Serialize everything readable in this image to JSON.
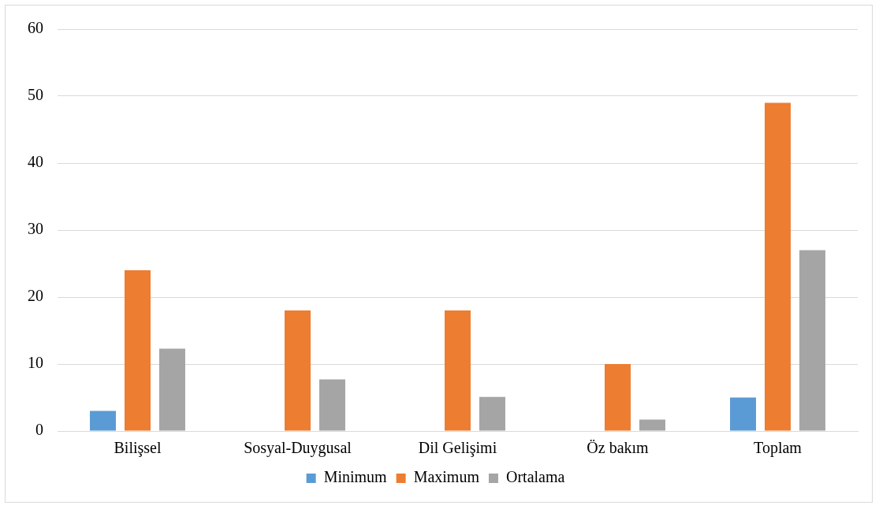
{
  "chart_data": {
    "type": "bar",
    "categories": [
      "Bilişsel",
      "Sosyal-Duygusal",
      "Dil Gelişimi",
      "Öz bakım",
      "Toplam"
    ],
    "series": [
      {
        "name": "Minimum",
        "color": "#5b9bd5",
        "values": [
          3,
          0,
          0,
          0,
          5
        ]
      },
      {
        "name": "Maximum",
        "color": "#ed7d31",
        "values": [
          24,
          18,
          18,
          10,
          49
        ]
      },
      {
        "name": "Ortalama",
        "color": "#a5a5a5",
        "values": [
          12.3,
          7.7,
          5.1,
          1.7,
          27
        ]
      }
    ],
    "ylim": [
      0,
      60
    ],
    "yticks": [
      0,
      10,
      20,
      30,
      40,
      50,
      60
    ],
    "grid": "y",
    "legend": "bottom"
  }
}
